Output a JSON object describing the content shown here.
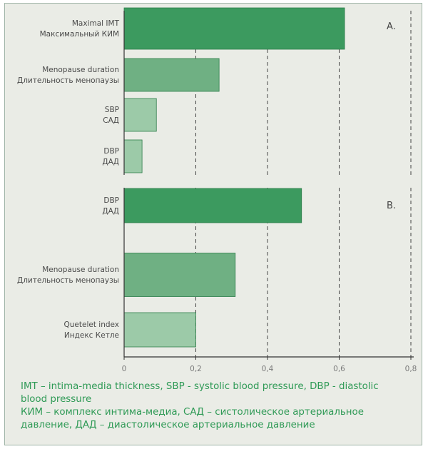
{
  "chart_data": [
    {
      "type": "bar",
      "orientation": "horizontal",
      "panel_label": "A.",
      "categories": [
        {
          "en": "Maximal IMT",
          "ru": "Максимальный КИМ"
        },
        {
          "en": "Menopause duration",
          "ru": "Длительность менопаузы"
        },
        {
          "en": "SBP",
          "ru": "САД"
        },
        {
          "en": "DBP",
          "ru": "ДАД"
        }
      ],
      "values": [
        0.615,
        0.265,
        0.09,
        0.05
      ],
      "colors": [
        "#3c9a5f",
        "#6fb083",
        "#9ccaa8",
        "#9ccaa8"
      ],
      "xlim": [
        0,
        0.8
      ],
      "grid": "vertical dashed"
    },
    {
      "type": "bar",
      "orientation": "horizontal",
      "panel_label": "B.",
      "categories": [
        {
          "en": "DBP",
          "ru": "ДАД"
        },
        {
          "en": "Menopause duration",
          "ru": "Длительность менопаузы"
        },
        {
          "en": "Quetelet index",
          "ru": "Индекс Кетле"
        }
      ],
      "values": [
        0.495,
        0.31,
        0.2
      ],
      "colors": [
        "#3c9a5f",
        "#6fb083",
        "#9ccaa8"
      ],
      "xlim": [
        0,
        0.8
      ],
      "xticks": [
        "0",
        "0,2",
        "0,4",
        "0,6",
        "0,8"
      ],
      "grid": "vertical dashed"
    }
  ],
  "footnote": {
    "line1": "IMT – intima-media thickness, SBP - systolic blood pressure, DBP - diastolic",
    "line2": "blood pressure",
    "line3": "КИМ – комплекс интима-медиа, САД – систолическое артериальное",
    "line4": "давление, ДАД – диастолическое артериальное давление"
  }
}
